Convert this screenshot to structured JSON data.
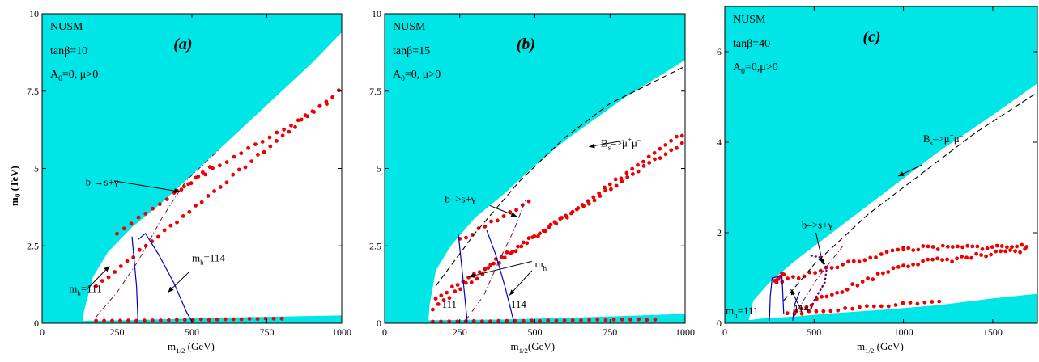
{
  "ylabel_main": "m",
  "ylabel_sub": "0",
  "ylabel_unit": " (TeV)",
  "colors": {
    "excluded": "#00e5e5",
    "points": "#ee0000",
    "contour": "#0000cc",
    "dashdot": "#7a1040",
    "dashed": "#000000",
    "purple": "#660066"
  },
  "chart_data": [
    {
      "type": "scatter",
      "label": "(a)",
      "model": "NUSM",
      "tanb": "tanβ=10",
      "params": "A",
      "params_sub": "0",
      "params_rest": "=0, μ>0",
      "xlim": [
        0,
        1000
      ],
      "ylim": [
        0,
        10
      ],
      "xticks": [
        "0",
        "250",
        "500",
        "750",
        "1000"
      ],
      "yticks": [
        "0",
        "2.5",
        "5",
        "7.5",
        "10"
      ],
      "ytick_values": [
        0,
        2.5,
        5,
        7.5,
        10
      ],
      "xtick_values": [
        0,
        250,
        500,
        750,
        1000
      ],
      "xlabel_main": "m",
      "xlabel_sub": "1/2",
      "xlabel_unit": " (GeV)",
      "excluded_upper": [
        [
          0,
          10
        ],
        [
          1000,
          10
        ],
        [
          1000,
          9.4
        ],
        [
          900,
          8.4
        ],
        [
          800,
          7.5
        ],
        [
          700,
          6.6
        ],
        [
          600,
          5.7
        ],
        [
          500,
          4.8
        ],
        [
          400,
          3.9
        ],
        [
          300,
          3.1
        ],
        [
          220,
          2.3
        ],
        [
          170,
          1.5
        ],
        [
          140,
          0.4
        ],
        [
          135,
          0
        ],
        [
          0,
          0
        ]
      ],
      "excluded_lower": [
        [
          0,
          0
        ],
        [
          1000,
          0
        ],
        [
          1000,
          0.25
        ],
        [
          600,
          0.18
        ],
        [
          300,
          0.1
        ],
        [
          140,
          0.08
        ]
      ],
      "points_series": [
        {
          "from": [
            180,
            1.2
          ],
          "to": [
            990,
            7.5
          ],
          "n": 40,
          "jitter": 0.05
        },
        {
          "from": [
            450,
            4.3
          ],
          "to": [
            950,
            7.1
          ],
          "n": 22,
          "jitter": 0.05
        },
        {
          "from": [
            250,
            2.9
          ],
          "to": [
            560,
            5.0
          ],
          "n": 14,
          "jitter": 0.05
        },
        {
          "from": [
            180,
            0.07
          ],
          "to": [
            800,
            0.15
          ],
          "n": 24,
          "jitter": 0.01
        }
      ],
      "contours": [
        {
          "name": "m_h=111",
          "points": [
            [
              300,
              2.8
            ],
            [
              315,
              1.2
            ],
            [
              320,
              0.05
            ]
          ]
        },
        {
          "name": "m_h=114",
          "points": [
            [
              320,
              2.7
            ],
            [
              345,
              2.9
            ],
            [
              390,
              2.2
            ],
            [
              440,
              1.3
            ],
            [
              480,
              0.4
            ],
            [
              500,
              0.05
            ]
          ]
        }
      ],
      "dashdot_line": [
        [
          180,
          0.2
        ],
        [
          250,
          1.0
        ],
        [
          320,
          2.0
        ],
        [
          400,
          3.4
        ],
        [
          480,
          4.6
        ],
        [
          590,
          5.6
        ]
      ],
      "dashed_line": [],
      "annotations": [
        {
          "text": "b →s+γ",
          "x": 145,
          "y": 4.45,
          "arrow": [
            [
              240,
              4.6
            ],
            [
              460,
              4.25
            ]
          ]
        },
        {
          "text": "m",
          "sub": "h",
          "rest": "=111",
          "x": 90,
          "y": 1.0,
          "arrow": [
            [
              150,
              1.1
            ],
            [
              225,
              1.85
            ]
          ]
        },
        {
          "text": "m",
          "sub": "h",
          "rest": "=114",
          "x": 500,
          "y": 2.0,
          "arrow": [
            [
              490,
              1.65
            ],
            [
              420,
              1.0
            ]
          ]
        }
      ]
    },
    {
      "type": "scatter",
      "label": "(b)",
      "model": "NUSM",
      "tanb": "tanβ=15",
      "params": "A",
      "params_sub": "0",
      "params_rest": "=0, μ>0",
      "xlim": [
        0,
        1000
      ],
      "ylim": [
        0,
        10
      ],
      "xticks": [
        "0",
        "250",
        "500",
        "750",
        "1000"
      ],
      "yticks": [
        "0",
        "2.5",
        "5",
        "7.5",
        "10"
      ],
      "ytick_values": [
        0,
        2.5,
        5,
        7.5,
        10
      ],
      "xtick_values": [
        0,
        250,
        500,
        750,
        1000
      ],
      "xlabel_main": "m",
      "xlabel_sub": "1/2",
      "xlabel_unit": "(GeV)",
      "excluded_upper": [
        [
          0,
          10
        ],
        [
          1000,
          10
        ],
        [
          1000,
          8.5
        ],
        [
          900,
          7.9
        ],
        [
          800,
          7.3
        ],
        [
          700,
          6.6
        ],
        [
          600,
          5.9
        ],
        [
          500,
          5.1
        ],
        [
          400,
          4.2
        ],
        [
          300,
          3.4
        ],
        [
          220,
          2.5
        ],
        [
          170,
          1.7
        ],
        [
          150,
          0.6
        ],
        [
          145,
          0
        ],
        [
          0,
          0
        ]
      ],
      "excluded_lower": [
        [
          0,
          0
        ],
        [
          1000,
          0
        ],
        [
          1000,
          0.3
        ],
        [
          700,
          0.2
        ],
        [
          400,
          0.12
        ],
        [
          150,
          0.1
        ]
      ],
      "points_series": [
        {
          "from": [
            160,
            0.5
          ],
          "to": [
            990,
            6.1
          ],
          "n": 46,
          "jitter": 0.06
        },
        {
          "from": [
            170,
            0.8
          ],
          "to": [
            990,
            5.8
          ],
          "n": 46,
          "jitter": 0.06
        },
        {
          "from": [
            250,
            2.7
          ],
          "to": [
            480,
            3.9
          ],
          "n": 12,
          "jitter": 0.06
        },
        {
          "from": [
            160,
            0.05
          ],
          "to": [
            900,
            0.12
          ],
          "n": 28,
          "jitter": 0.01
        }
      ],
      "contours": [
        {
          "name": "111",
          "points": [
            [
              245,
              2.9
            ],
            [
              260,
              1.5
            ],
            [
              275,
              0.05
            ]
          ]
        },
        {
          "name": "114",
          "points": [
            [
              340,
              3.0
            ],
            [
              370,
              2.2
            ],
            [
              400,
              1.2
            ],
            [
              430,
              0.05
            ]
          ]
        }
      ],
      "dashdot_line": [
        [
          270,
          0.1
        ],
        [
          330,
          0.9
        ],
        [
          380,
          2.0
        ],
        [
          430,
          3.0
        ],
        [
          470,
          4.0
        ]
      ],
      "dashed_line": [
        [
          170,
          1.2
        ],
        [
          300,
          2.9
        ],
        [
          450,
          4.6
        ],
        [
          600,
          6.0
        ],
        [
          750,
          7.1
        ],
        [
          1000,
          8.3
        ]
      ],
      "annotations": [
        {
          "text": "b–>s+γ",
          "x": 200,
          "y": 3.9,
          "arrow": [
            [
              350,
              3.8
            ],
            [
              440,
              3.45
            ]
          ]
        },
        {
          "text": "B",
          "sub": "s",
          "rest": "–>μ",
          "sup": "+",
          "rest2": "μ",
          "sup2": "–",
          "x": 720,
          "y": 5.7,
          "arrow": [
            [
              795,
              5.9
            ],
            [
              680,
              5.7
            ]
          ]
        },
        {
          "text": "m",
          "sub": "h",
          "rest": "",
          "x": 500,
          "y": 1.8,
          "arrow": [
            [
              490,
              2.0
            ],
            [
              280,
              1.5
            ]
          ],
          "arrow2": [
            [
              490,
              1.7
            ],
            [
              415,
              0.9
            ]
          ]
        },
        {
          "text": "111",
          "x": 190,
          "y": 0.5,
          "arrow": null
        },
        {
          "text": "114",
          "x": 420,
          "y": 0.5,
          "arrow": null
        }
      ]
    },
    {
      "type": "scatter",
      "label": "(c)",
      "model": "NUSM",
      "tanb": "tanβ=40",
      "params": "A",
      "params_sub": "0",
      "params_rest": "=0,μ>0",
      "xlim": [
        0,
        1750
      ],
      "ylim": [
        0,
        7
      ],
      "xticks": [
        "0",
        "500",
        "1000",
        "1500"
      ],
      "yticks": [
        "0",
        "2",
        "4",
        "6"
      ],
      "ytick_values": [
        0,
        2,
        4,
        6
      ],
      "xtick_values": [
        0,
        500,
        1000,
        1500
      ],
      "xlabel_main": "m",
      "xlabel_sub": "1/2",
      "xlabel_unit": " (GeV)",
      "excluded_upper": [
        [
          0,
          7
        ],
        [
          1750,
          7
        ],
        [
          1750,
          5.3
        ],
        [
          1500,
          4.6
        ],
        [
          1200,
          3.8
        ],
        [
          900,
          2.9
        ],
        [
          600,
          2.0
        ],
        [
          400,
          1.4
        ],
        [
          250,
          0.9
        ],
        [
          160,
          0.5
        ],
        [
          130,
          0
        ],
        [
          0,
          0
        ]
      ],
      "excluded_lower": [
        [
          0,
          0
        ],
        [
          1750,
          0
        ],
        [
          1750,
          0.65
        ],
        [
          1500,
          0.55
        ],
        [
          1200,
          0.4
        ],
        [
          900,
          0.3
        ],
        [
          600,
          0.22
        ],
        [
          400,
          0.15
        ],
        [
          200,
          0.1
        ]
      ],
      "points_series": [
        {
          "from": [
            290,
            0.9
          ],
          "to": [
            1000,
            1.65
          ],
          "n": 24,
          "jitter": 0.04
        },
        {
          "from": [
            1000,
            1.65
          ],
          "to": [
            1690,
            1.7
          ],
          "n": 26,
          "jitter": 0.05
        },
        {
          "from": [
            400,
            0.3
          ],
          "to": [
            1000,
            1.3
          ],
          "n": 22,
          "jitter": 0.05
        },
        {
          "from": [
            1000,
            1.3
          ],
          "to": [
            1680,
            1.6
          ],
          "n": 26,
          "jitter": 0.06
        },
        {
          "from": [
            350,
            0.2
          ],
          "to": [
            1200,
            0.5
          ],
          "n": 22,
          "jitter": 0.03
        },
        {
          "from": [
            280,
            0.95
          ],
          "to": [
            330,
            1.1
          ],
          "n": 6,
          "jitter": 0.04
        }
      ],
      "contours": [
        {
          "name": "m_h=111",
          "points": [
            [
              250,
              0.05
            ],
            [
              255,
              0.6
            ],
            [
              265,
              1.0
            ],
            [
              320,
              1.05
            ],
            [
              330,
              0.2
            ]
          ]
        },
        {
          "name": "114",
          "points": [
            [
              380,
              0.05
            ],
            [
              390,
              0.4
            ],
            [
              420,
              0.7
            ]
          ]
        }
      ],
      "dashdot_line": [
        [
          380,
          0.1
        ],
        [
          440,
          0.5
        ],
        [
          520,
          1.0
        ],
        [
          600,
          1.4
        ],
        [
          680,
          1.8
        ]
      ],
      "dashed_line": [
        [
          330,
          0.5
        ],
        [
          500,
          1.3
        ],
        [
          800,
          2.4
        ],
        [
          1100,
          3.3
        ],
        [
          1400,
          4.2
        ],
        [
          1750,
          5.1
        ]
      ],
      "purple_loop": [
        [
          480,
          1.5
        ],
        [
          540,
          1.45
        ],
        [
          570,
          1.2
        ],
        [
          560,
          0.9
        ],
        [
          530,
          0.7
        ],
        [
          500,
          0.5
        ],
        [
          480,
          0.3
        ]
      ],
      "annotations": [
        {
          "text": "B",
          "sub": "s",
          "rest": "–>μ",
          "sup": "+",
          "rest2": "μ",
          "sup2": "–",
          "x": 1110,
          "y": 4.0,
          "arrow": [
            [
              1105,
              3.5
            ],
            [
              970,
              3.25
            ]
          ]
        },
        {
          "text": "b–>s+γ",
          "x": 430,
          "y": 2.1,
          "arrow": [
            [
              510,
              2.0
            ],
            [
              550,
              1.3
            ]
          ]
        },
        {
          "text": "m",
          "sub": "h",
          "rest": "=111",
          "x": 5,
          "y": 0.2,
          "arrow": null
        },
        {
          "text": "114",
          "x": 385,
          "y": 0.25,
          "arrow": [
            [
              420,
              0.35
            ],
            [
              370,
              0.75
            ]
          ]
        }
      ]
    }
  ]
}
